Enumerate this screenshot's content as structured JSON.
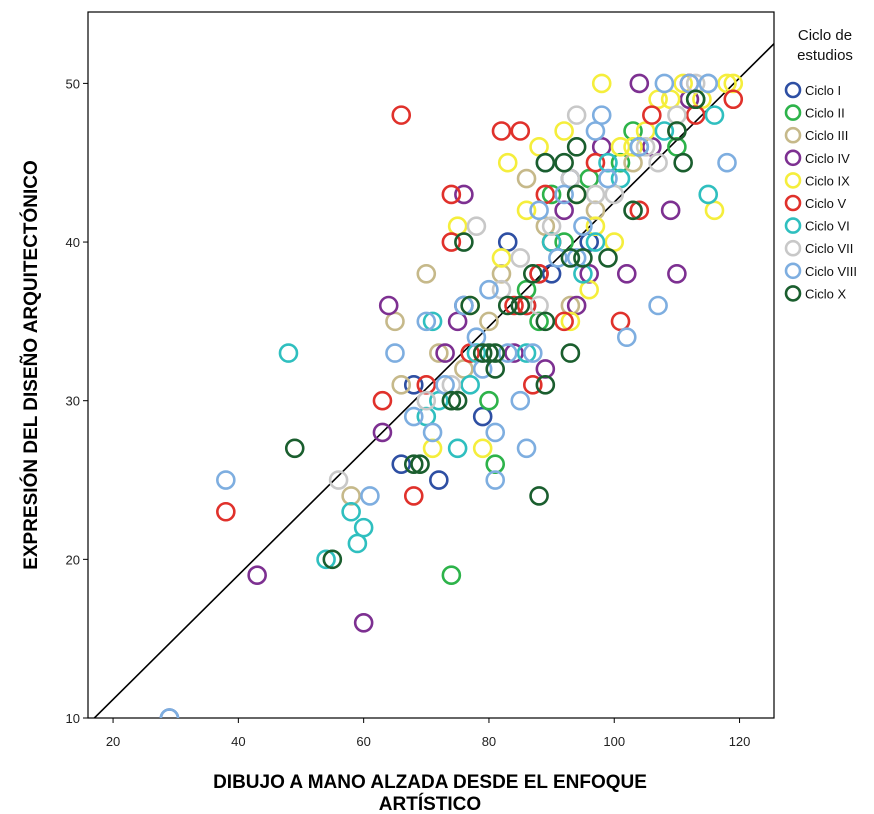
{
  "chart_data": {
    "type": "scatter",
    "xlabel_lines": [
      "DIBUJO A MANO ALZADA DESDE EL ENFOQUE",
      "ARTÍSTICO"
    ],
    "ylabel": "EXPRESIÓN DEL DISEÑO ARQUITECTÓNICO",
    "xlim": [
      16,
      125.5
    ],
    "ylim": [
      10,
      54.5
    ],
    "xticks": [
      20,
      40,
      60,
      80,
      100,
      120
    ],
    "yticks": [
      10,
      20,
      30,
      40,
      50
    ],
    "grid": false,
    "legend": {
      "title_lines": [
        "Ciclo de",
        "estudios"
      ],
      "position": "right"
    },
    "fit_line": {
      "x1": 16.5,
      "y1": 9.8,
      "x2": 125.5,
      "y2": 52.5
    },
    "series": [
      {
        "name": "Ciclo I",
        "color": "#2e4fa3",
        "points": [
          [
            29,
            10
          ],
          [
            66,
            26
          ],
          [
            72,
            25
          ],
          [
            79,
            29
          ],
          [
            83,
            40
          ],
          [
            86,
            36
          ],
          [
            90,
            38
          ],
          [
            93,
            44
          ],
          [
            96,
            40
          ],
          [
            76,
            36
          ],
          [
            68,
            31
          ]
        ]
      },
      {
        "name": "Ciclo II",
        "color": "#2db34a",
        "points": [
          [
            74,
            19
          ],
          [
            80,
            30
          ],
          [
            81,
            26
          ],
          [
            86,
            37
          ],
          [
            90,
            43
          ],
          [
            96,
            44
          ],
          [
            101,
            45
          ],
          [
            103,
            47
          ],
          [
            110,
            46
          ],
          [
            113,
            49
          ],
          [
            92,
            40
          ],
          [
            88,
            35
          ]
        ]
      },
      {
        "name": "Ciclo III",
        "color": "#c6b98a",
        "points": [
          [
            58,
            24
          ],
          [
            65,
            35
          ],
          [
            66,
            31
          ],
          [
            70,
            38
          ],
          [
            72,
            33
          ],
          [
            76,
            32
          ],
          [
            80,
            35
          ],
          [
            82,
            38
          ],
          [
            86,
            44
          ],
          [
            89,
            41
          ],
          [
            93,
            36
          ],
          [
            97,
            42
          ],
          [
            103,
            45
          ],
          [
            110,
            47
          ]
        ]
      },
      {
        "name": "Ciclo IV",
        "color": "#7d3091",
        "points": [
          [
            43,
            19
          ],
          [
            60,
            16
          ],
          [
            63,
            28
          ],
          [
            64,
            36
          ],
          [
            73,
            33
          ],
          [
            75,
            35
          ],
          [
            76,
            43
          ],
          [
            84,
            33
          ],
          [
            88,
            38
          ],
          [
            89,
            32
          ],
          [
            92,
            42
          ],
          [
            94,
            36
          ],
          [
            96,
            38
          ],
          [
            98,
            46
          ],
          [
            102,
            38
          ],
          [
            104,
            50
          ],
          [
            106,
            46
          ],
          [
            109,
            42
          ],
          [
            110,
            38
          ],
          [
            112,
            49
          ]
        ]
      },
      {
        "name": "Ciclo IX",
        "color": "#f5ee3c",
        "points": [
          [
            71,
            27
          ],
          [
            75,
            41
          ],
          [
            77,
            36
          ],
          [
            79,
            27
          ],
          [
            82,
            39
          ],
          [
            83,
            45
          ],
          [
            86,
            42
          ],
          [
            88,
            46
          ],
          [
            90,
            40
          ],
          [
            92,
            47
          ],
          [
            94,
            43
          ],
          [
            96,
            37
          ],
          [
            97,
            41
          ],
          [
            98,
            50
          ],
          [
            100,
            40
          ],
          [
            101,
            46
          ],
          [
            103,
            46
          ],
          [
            105,
            47
          ],
          [
            107,
            49
          ],
          [
            109,
            49
          ],
          [
            111,
            50
          ],
          [
            114,
            49
          ],
          [
            116,
            42
          ],
          [
            118,
            50
          ],
          [
            119,
            50
          ],
          [
            93,
            35
          ]
        ]
      },
      {
        "name": "Ciclo V",
        "color": "#e0312b",
        "points": [
          [
            38,
            23
          ],
          [
            63,
            30
          ],
          [
            66,
            48
          ],
          [
            68,
            24
          ],
          [
            70,
            31
          ],
          [
            74,
            40
          ],
          [
            74,
            43
          ],
          [
            77,
            33
          ],
          [
            82,
            47
          ],
          [
            84,
            36
          ],
          [
            85,
            47
          ],
          [
            87,
            31
          ],
          [
            88,
            38
          ],
          [
            89,
            43
          ],
          [
            90,
            40
          ],
          [
            92,
            35
          ],
          [
            97,
            45
          ],
          [
            101,
            35
          ],
          [
            104,
            42
          ],
          [
            106,
            48
          ],
          [
            112,
            50
          ],
          [
            113,
            48
          ],
          [
            119,
            49
          ],
          [
            86,
            36
          ]
        ]
      },
      {
        "name": "Ciclo VI",
        "color": "#2fbfbf",
        "points": [
          [
            48,
            33
          ],
          [
            54,
            20
          ],
          [
            58,
            23
          ],
          [
            59,
            21
          ],
          [
            60,
            22
          ],
          [
            70,
            29
          ],
          [
            72,
            30
          ],
          [
            75,
            27
          ],
          [
            77,
            31
          ],
          [
            78,
            33
          ],
          [
            86,
            33
          ],
          [
            90,
            40
          ],
          [
            95,
            38
          ],
          [
            97,
            40
          ],
          [
            99,
            45
          ],
          [
            101,
            44
          ],
          [
            104,
            46
          ],
          [
            108,
            47
          ],
          [
            115,
            43
          ],
          [
            116,
            48
          ],
          [
            71,
            35
          ]
        ]
      },
      {
        "name": "Ciclo VII",
        "color": "#c8c8c8",
        "points": [
          [
            56,
            25
          ],
          [
            70,
            30
          ],
          [
            74,
            31
          ],
          [
            78,
            41
          ],
          [
            82,
            37
          ],
          [
            85,
            39
          ],
          [
            88,
            36
          ],
          [
            90,
            41
          ],
          [
            93,
            44
          ],
          [
            94,
            48
          ],
          [
            97,
            43
          ],
          [
            100,
            43
          ],
          [
            103,
            42
          ],
          [
            105,
            46
          ],
          [
            107,
            45
          ],
          [
            110,
            48
          ],
          [
            113,
            50
          ],
          [
            115,
            50
          ]
        ]
      },
      {
        "name": "Ciclo VIII",
        "color": "#7eaee0",
        "points": [
          [
            29,
            10
          ],
          [
            38,
            25
          ],
          [
            61,
            24
          ],
          [
            65,
            33
          ],
          [
            68,
            29
          ],
          [
            71,
            28
          ],
          [
            73,
            31
          ],
          [
            76,
            36
          ],
          [
            78,
            34
          ],
          [
            80,
            37
          ],
          [
            81,
            28
          ],
          [
            81,
            25
          ],
          [
            83,
            33
          ],
          [
            85,
            30
          ],
          [
            86,
            27
          ],
          [
            87,
            33
          ],
          [
            88,
            42
          ],
          [
            89,
            45
          ],
          [
            91,
            39
          ],
          [
            92,
            43
          ],
          [
            94,
            39
          ],
          [
            95,
            41
          ],
          [
            97,
            47
          ],
          [
            98,
            48
          ],
          [
            99,
            44
          ],
          [
            102,
            34
          ],
          [
            104,
            46
          ],
          [
            107,
            36
          ],
          [
            108,
            50
          ],
          [
            112,
            50
          ],
          [
            115,
            50
          ],
          [
            118,
            45
          ],
          [
            70,
            35
          ],
          [
            79,
            32
          ]
        ]
      },
      {
        "name": "Ciclo X",
        "color": "#1a5e2e",
        "points": [
          [
            49,
            27
          ],
          [
            55,
            20
          ],
          [
            68,
            26
          ],
          [
            69,
            26
          ],
          [
            74,
            30
          ],
          [
            75,
            30
          ],
          [
            76,
            40
          ],
          [
            77,
            36
          ],
          [
            79,
            33
          ],
          [
            80,
            33
          ],
          [
            81,
            32
          ],
          [
            81,
            33
          ],
          [
            83,
            36
          ],
          [
            85,
            36
          ],
          [
            87,
            38
          ],
          [
            88,
            24
          ],
          [
            89,
            31
          ],
          [
            89,
            45
          ],
          [
            92,
            45
          ],
          [
            93,
            33
          ],
          [
            93,
            39
          ],
          [
            94,
            46
          ],
          [
            94,
            43
          ],
          [
            95,
            39
          ],
          [
            99,
            39
          ],
          [
            103,
            42
          ],
          [
            110,
            47
          ],
          [
            111,
            45
          ],
          [
            113,
            49
          ],
          [
            89,
            35
          ]
        ]
      }
    ]
  }
}
